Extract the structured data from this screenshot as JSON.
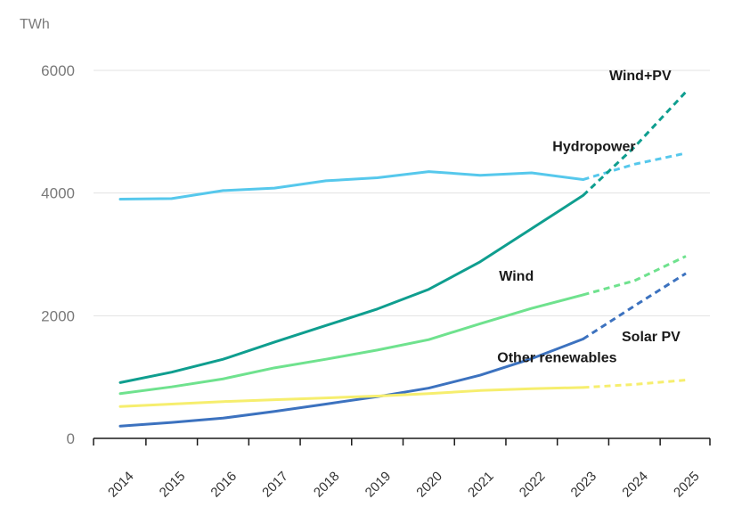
{
  "chart_data": {
    "type": "line",
    "unit_label": "TWh",
    "ylim": [
      0,
      6000
    ],
    "yticks": [
      0,
      2000,
      4000,
      6000
    ],
    "grid": true,
    "categories": [
      "2014",
      "2015",
      "2016",
      "2017",
      "2018",
      "2019",
      "2020",
      "2021",
      "2022",
      "2023",
      "2024",
      "2025"
    ],
    "forecast_from": "2023",
    "series": [
      {
        "name": "Hydropower",
        "color": "#56c8ec",
        "values": [
          3900,
          3910,
          4040,
          4080,
          4200,
          4250,
          4350,
          4290,
          4330,
          4220,
          4470,
          4650
        ]
      },
      {
        "name": "Wind+PV",
        "color": "#0f9e8f",
        "values": [
          910,
          1080,
          1290,
          1570,
          1840,
          2110,
          2430,
          2880,
          3420,
          3960,
          4750,
          5650
        ]
      },
      {
        "name": "Wind",
        "color": "#6fe28e",
        "values": [
          730,
          840,
          970,
          1150,
          1290,
          1440,
          1610,
          1870,
          2120,
          2340,
          2570,
          2970
        ]
      },
      {
        "name": "Solar PV",
        "color": "#3c72bf",
        "values": [
          200,
          260,
          330,
          440,
          560,
          680,
          820,
          1030,
          1300,
          1620,
          2160,
          2690
        ]
      },
      {
        "name": "Other renewables",
        "color": "#f6ee6e",
        "values": [
          520,
          560,
          600,
          630,
          660,
          690,
          730,
          780,
          810,
          830,
          880,
          950
        ]
      }
    ]
  }
}
